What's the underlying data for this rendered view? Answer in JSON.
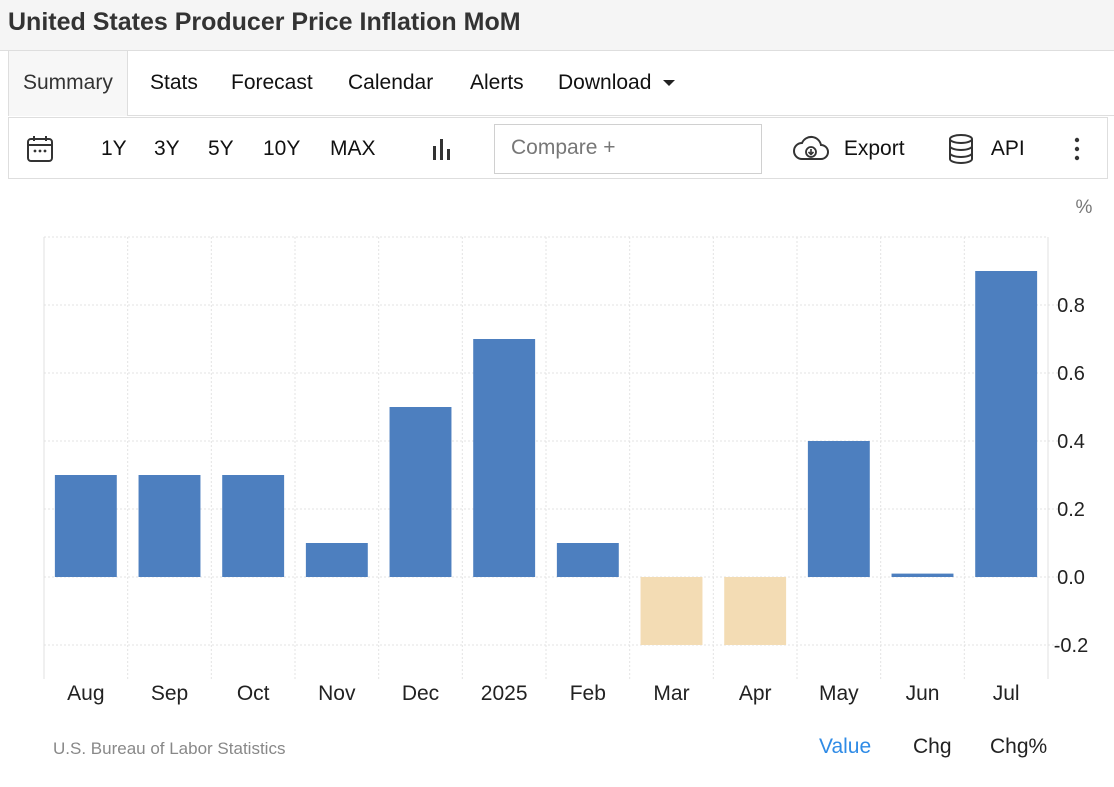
{
  "page": {
    "title": "United States Producer Price Inflation MoM"
  },
  "tabs": [
    {
      "label": "Summary",
      "active": true
    },
    {
      "label": "Stats"
    },
    {
      "label": "Forecast"
    },
    {
      "label": "Calendar"
    },
    {
      "label": "Alerts"
    },
    {
      "label": "Download",
      "dropdown": true
    }
  ],
  "toolbar": {
    "ranges": [
      "1Y",
      "3Y",
      "5Y",
      "10Y",
      "MAX"
    ],
    "compare_placeholder": "Compare +",
    "export_label": "Export",
    "api_label": "API",
    "icons": [
      "calendar-icon",
      "bar-chart-icon",
      "cloud-download-icon",
      "database-icon",
      "more-vertical-icon"
    ]
  },
  "chart_data": {
    "type": "bar",
    "unit": "%",
    "categories": [
      "Aug",
      "Sep",
      "Oct",
      "Nov",
      "Dec",
      "2025",
      "Feb",
      "Mar",
      "Apr",
      "May",
      "Jun",
      "Jul"
    ],
    "values": [
      0.3,
      0.3,
      0.3,
      0.1,
      0.5,
      0.7,
      0.1,
      -0.2,
      -0.2,
      0.4,
      0.01,
      0.9
    ],
    "yticks": [
      -0.2,
      0.0,
      0.2,
      0.4,
      0.6,
      0.8
    ],
    "ylim": [
      -0.3,
      1.0
    ],
    "grid": true,
    "colors": {
      "positive": "#4d7fbf",
      "negative": "#f3dcb4"
    }
  },
  "footer": {
    "source": "U.S. Bureau of Labor Statistics",
    "modes": [
      {
        "label": "Value",
        "active": true
      },
      {
        "label": "Chg"
      },
      {
        "label": "Chg%"
      }
    ]
  }
}
